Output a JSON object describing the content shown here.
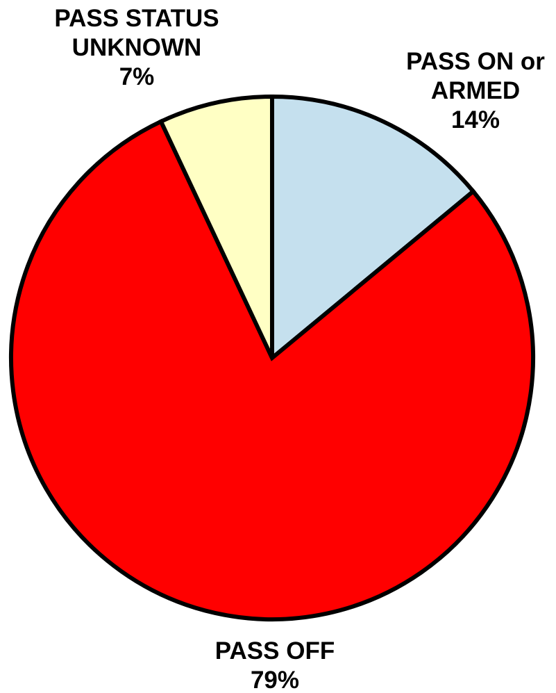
{
  "chart_data": {
    "type": "pie",
    "slices": [
      {
        "label_lines": [
          "PASS ON or",
          "ARMED"
        ],
        "percent_label": "14%",
        "value": 14,
        "color": "#c5e0ee"
      },
      {
        "label_lines": [
          "PASS OFF"
        ],
        "percent_label": "79%",
        "value": 79,
        "color": "#ff0000"
      },
      {
        "label_lines": [
          "PASS STATUS",
          "UNKNOWN"
        ],
        "percent_label": "7%",
        "value": 7,
        "color": "#ffffc4"
      }
    ],
    "start_angle": "12 o'clock",
    "direction": "clockwise",
    "legend": "none"
  }
}
